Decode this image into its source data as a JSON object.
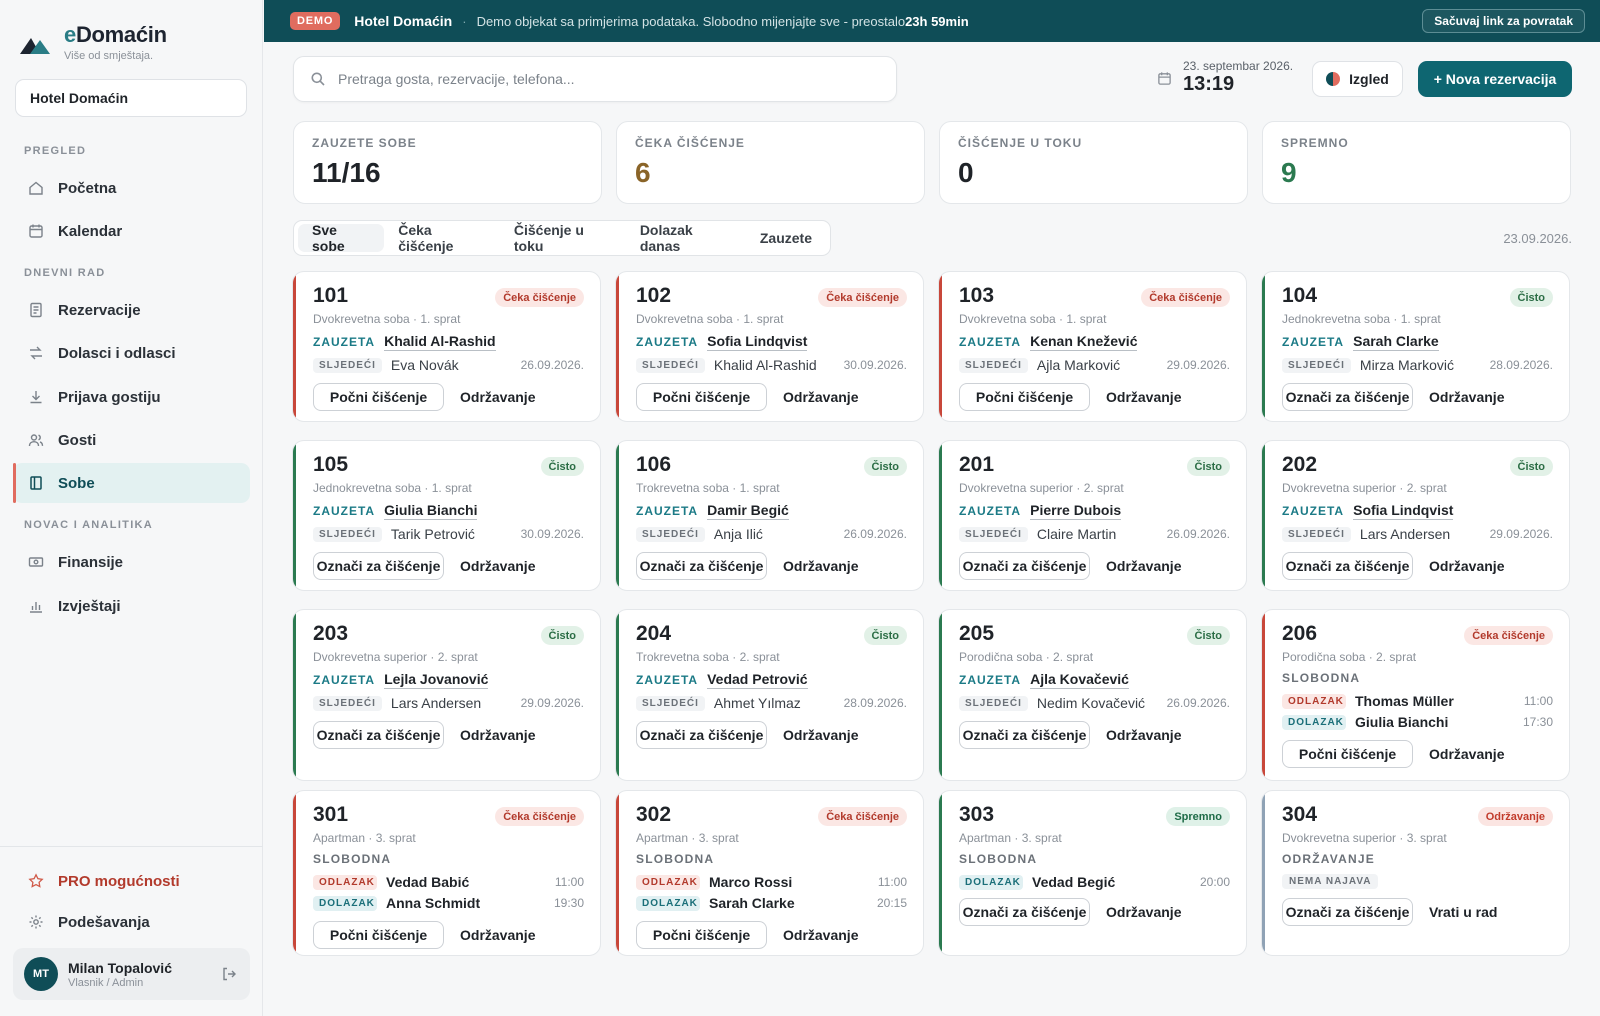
{
  "app": {
    "brand_name_e": "e",
    "brand_name_rest": "Domaćin",
    "brand_tagline": "Više od smještaja.",
    "hotel_select": "Hotel Domaćin"
  },
  "sidebar": {
    "sections": {
      "pregled": "PREGLED",
      "dnevni_rad": "DNEVNI RAD",
      "novac": "NOVAC I ANALITIKA"
    },
    "items": [
      {
        "label": "Početna",
        "icon": "home-icon"
      },
      {
        "label": "Kalendar",
        "icon": "calendar-icon"
      },
      {
        "label": "Rezervacije",
        "icon": "document-icon"
      },
      {
        "label": "Dolasci i odlasci",
        "icon": "swap-icon"
      },
      {
        "label": "Prijava gostiju",
        "icon": "download-icon"
      },
      {
        "label": "Gosti",
        "icon": "users-icon"
      },
      {
        "label": "Sobe",
        "icon": "door-icon",
        "active": true
      },
      {
        "label": "Finansije",
        "icon": "money-icon"
      },
      {
        "label": "Izvještaji",
        "icon": "bar-chart-icon"
      }
    ],
    "pro": "PRO mogućnosti",
    "settings": "Podešavanja",
    "user": {
      "initials": "MT",
      "name": "Milan Topalović",
      "role": "Vlasnik / Admin"
    }
  },
  "banner": {
    "badge": "DEMO",
    "hotel": "Hotel Domaćin",
    "separator": "·",
    "message": "Demo objekat sa primjerima podataka. Slobodno mijenjajte sve - preostalo",
    "time_left": "23h 59min",
    "save_link": "Sačuvaj link za povratak"
  },
  "topbar": {
    "search_placeholder": "Pretraga gosta, rezervacije, telefona...",
    "date": "23. septembar 2026.",
    "time": "13:19",
    "theme_button": "Izgled",
    "new_button": "+ Nova rezervacija"
  },
  "stats": [
    {
      "label": "ZAUZETE SOBE",
      "value": "11/16",
      "color": "#1f2328"
    },
    {
      "label": "ČEKA ČIŠĆENJE",
      "value": "6",
      "color": "#8a6428"
    },
    {
      "label": "ČIŠĆENJE U TOKU",
      "value": "0",
      "color": "#1f2328"
    },
    {
      "label": "SPREMNO",
      "value": "9",
      "color": "#2b7a50"
    }
  ],
  "tabs": [
    "Sve sobe",
    "Čeka čišćenje",
    "Čišćenje u toku",
    "Dolazak danas",
    "Zauzete"
  ],
  "active_tab": "Sve sobe",
  "tabs_date": "23.09.2026.",
  "labels": {
    "occupied": "ZAUZETA",
    "next": "SLJEDEĆI",
    "departure": "ODLAZAK",
    "arrival": "DOLAZAK",
    "no_arrival": "NEMA NAJAVA",
    "maintenance": "Održavanje",
    "back_to_work": "Vrati u rad"
  },
  "colors": {
    "accent_dirty": "#c8473a",
    "accent_clean": "#2b7a50",
    "accent_maint": "#8fa2b5",
    "brand": "#0f4d57"
  },
  "rooms": [
    {
      "number": "101",
      "type": "Dvokrevetna soba · 1. sprat",
      "badge": "Čeka čišćenje",
      "kind": "occupied",
      "guest": "Khalid Al-Rashid",
      "next": "Eva Novák",
      "next_date": "26.09.2026.",
      "action": "Počni čišćenje"
    },
    {
      "number": "102",
      "type": "Dvokrevetna soba · 1. sprat",
      "badge": "Čeka čišćenje",
      "kind": "occupied",
      "guest": "Sofia Lindqvist",
      "next": "Khalid Al-Rashid",
      "next_date": "30.09.2026.",
      "action": "Počni čišćenje"
    },
    {
      "number": "103",
      "type": "Dvokrevetna soba · 1. sprat",
      "badge": "Čeka čišćenje",
      "kind": "occupied",
      "guest": "Kenan Knežević",
      "next": "Ajla Marković",
      "next_date": "29.09.2026.",
      "action": "Počni čišćenje"
    },
    {
      "number": "104",
      "type": "Jednokrevetna soba · 1. sprat",
      "badge": "Čisto",
      "kind": "occupied",
      "guest": "Sarah Clarke",
      "next": "Mirza Marković",
      "next_date": "28.09.2026.",
      "action": "Označi za čišćenje"
    },
    {
      "number": "105",
      "type": "Jednokrevetna soba · 1. sprat",
      "badge": "Čisto",
      "kind": "occupied",
      "guest": "Giulia Bianchi",
      "next": "Tarik Petrović",
      "next_date": "30.09.2026.",
      "action": "Označi za čišćenje"
    },
    {
      "number": "106",
      "type": "Trokrevetna soba · 1. sprat",
      "badge": "Čisto",
      "kind": "occupied",
      "guest": "Damir Begić",
      "next": "Anja Ilić",
      "next_date": "26.09.2026.",
      "action": "Označi za čišćenje"
    },
    {
      "number": "201",
      "type": "Dvokrevetna superior · 2. sprat",
      "badge": "Čisto",
      "kind": "occupied",
      "guest": "Pierre Dubois",
      "next": "Claire Martin",
      "next_date": "26.09.2026.",
      "action": "Označi za čišćenje"
    },
    {
      "number": "202",
      "type": "Dvokrevetna superior · 2. sprat",
      "badge": "Čisto",
      "kind": "occupied",
      "guest": "Sofia Lindqvist",
      "next": "Lars Andersen",
      "next_date": "29.09.2026.",
      "action": "Označi za čišćenje"
    },
    {
      "number": "203",
      "type": "Dvokrevetna superior · 2. sprat",
      "badge": "Čisto",
      "kind": "occupied",
      "guest": "Lejla Jovanović",
      "next": "Lars Andersen",
      "next_date": "29.09.2026.",
      "action": "Označi za čišćenje"
    },
    {
      "number": "204",
      "type": "Trokrevetna soba · 2. sprat",
      "badge": "Čisto",
      "kind": "occupied",
      "guest": "Vedad Petrović",
      "next": "Ahmet Yılmaz",
      "next_date": "28.09.2026.",
      "action": "Označi za čišćenje"
    },
    {
      "number": "205",
      "type": "Porodična soba · 2. sprat",
      "badge": "Čisto",
      "kind": "occupied",
      "guest": "Ajla Kovačević",
      "next": "Nedim Kovačević",
      "next_date": "26.09.2026.",
      "action": "Označi za čišćenje"
    },
    {
      "number": "206",
      "type": "Porodična soba · 2. sprat",
      "badge": "Čeka čišćenje",
      "kind": "free",
      "status": "SLOBODNA",
      "departure": {
        "name": "Thomas Müller",
        "time": "11:00"
      },
      "arrival": {
        "name": "Giulia Bianchi",
        "time": "17:30"
      },
      "action": "Počni čišćenje"
    },
    {
      "number": "301",
      "type": "Apartman · 3. sprat",
      "badge": "Čeka čišćenje",
      "kind": "free",
      "status": "SLOBODNA",
      "departure": {
        "name": "Vedad Babić",
        "time": "11:00"
      },
      "arrival": {
        "name": "Anna Schmidt",
        "time": "19:30"
      },
      "action": "Počni čišćenje"
    },
    {
      "number": "302",
      "type": "Apartman · 3. sprat",
      "badge": "Čeka čišćenje",
      "kind": "free",
      "status": "SLOBODNA",
      "departure": {
        "name": "Marco Rossi",
        "time": "11:00"
      },
      "arrival": {
        "name": "Sarah Clarke",
        "time": "20:15"
      },
      "action": "Počni čišćenje"
    },
    {
      "number": "303",
      "type": "Apartman · 3. sprat",
      "badge": "Spremno",
      "kind": "free",
      "status": "SLOBODNA",
      "arrival": {
        "name": "Vedad Begić",
        "time": "20:00"
      },
      "action": "Označi za čišćenje"
    },
    {
      "number": "304",
      "type": "Dvokrevetna superior · 3. sprat",
      "badge": "Održavanje",
      "kind": "maintenance",
      "status": "ODRŽAVANJE",
      "action": "Označi za čišćenje"
    }
  ]
}
